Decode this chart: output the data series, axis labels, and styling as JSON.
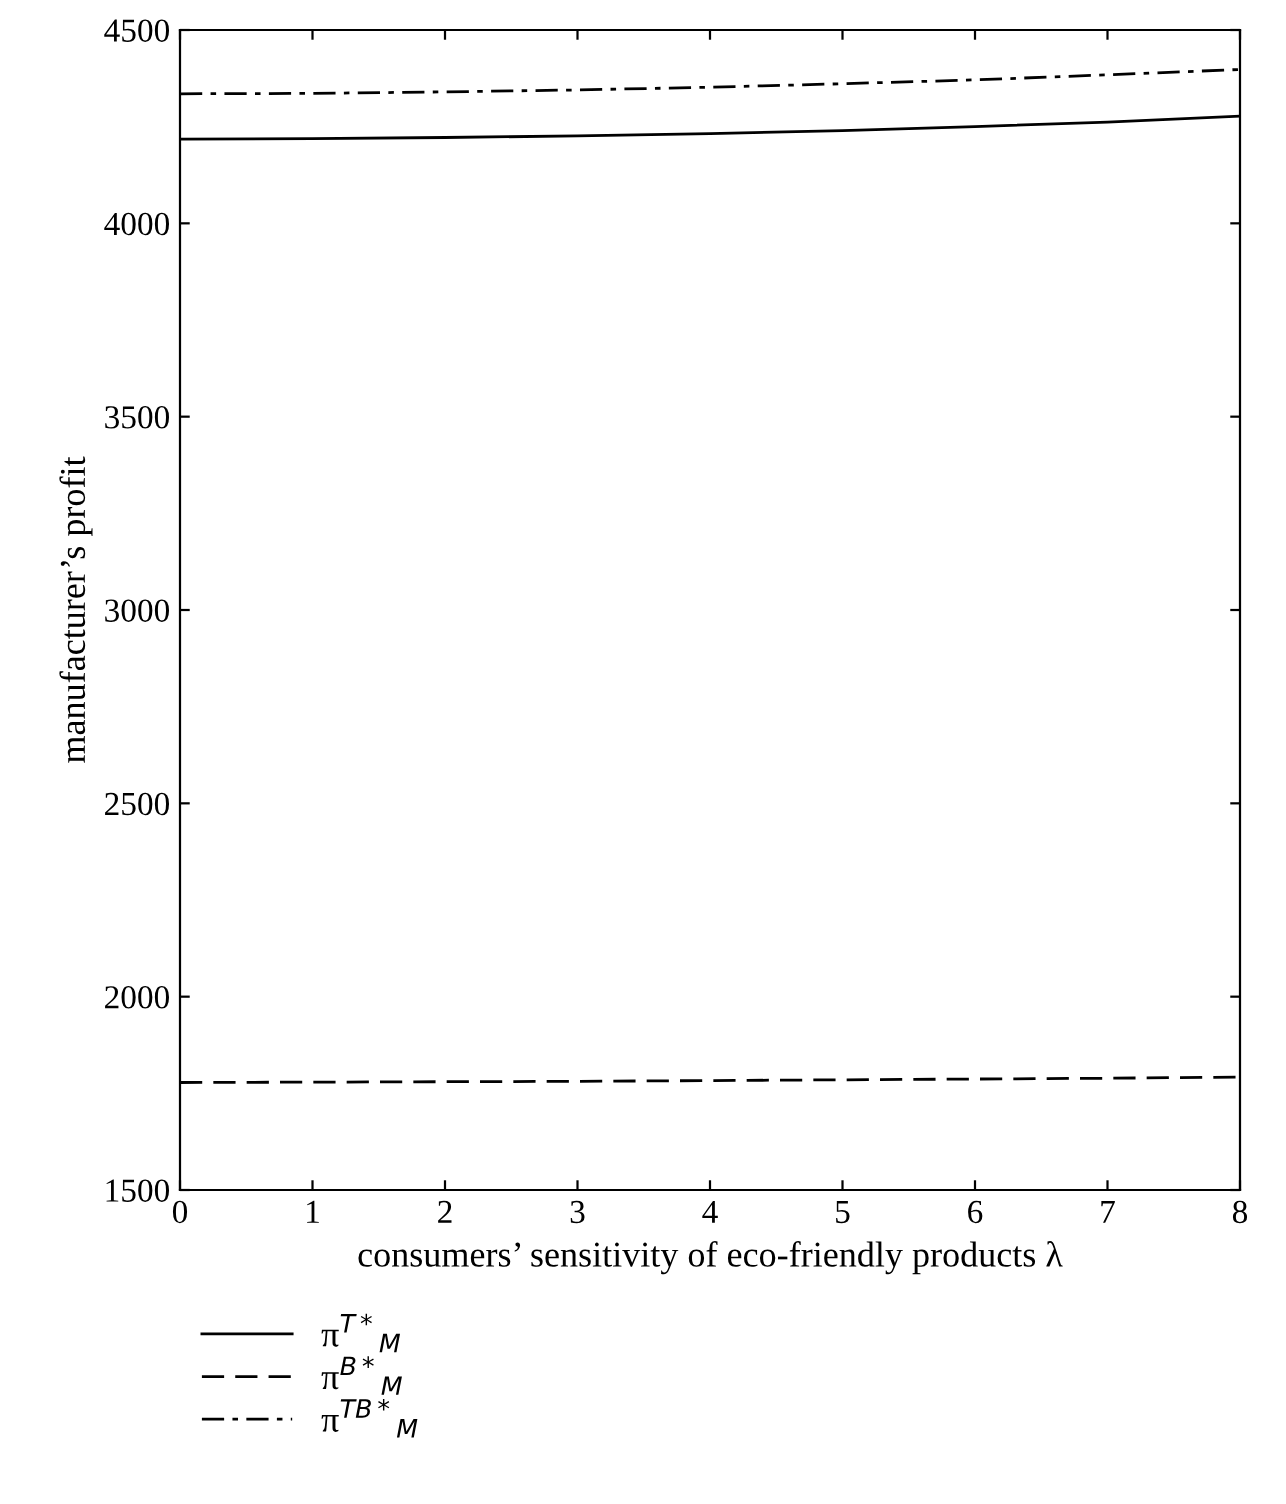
{
  "chart_data": {
    "type": "line",
    "xlabel": "consumers’ sensitivity of eco-friendly products λ",
    "ylabel": "manufacturer’s profit",
    "x": [
      0,
      1,
      2,
      3,
      4,
      5,
      6,
      7,
      8
    ],
    "series": [
      {
        "name": "π$^{T*}$$_{M}$",
        "color": "#000000",
        "line_style": "solid",
        "values": [
          4218,
          4219,
          4222,
          4226,
          4232,
          4240,
          4250,
          4262,
          4277
        ]
      },
      {
        "name": "π$^{B*}$$_{M}$",
        "color": "#000000",
        "line_style": "dashed",
        "values": [
          1778,
          1779,
          1780,
          1781,
          1783,
          1785,
          1787,
          1789,
          1792
        ]
      },
      {
        "name": "π$^{TB*}$$_{M}$",
        "color": "#000000",
        "line_style": "dashdot",
        "values": [
          4335,
          4336,
          4340,
          4345,
          4352,
          4361,
          4371,
          4384,
          4398
        ]
      }
    ],
    "xlim": [
      0,
      8
    ],
    "xticks": [
      0,
      1,
      2,
      3,
      4,
      5,
      6,
      7,
      8
    ],
    "ylim": [
      1500,
      4500
    ],
    "yticks": [
      1500,
      2000,
      2500,
      3000,
      3500,
      4000,
      4500
    ],
    "grid": false,
    "legend": "bottom",
    "marker": "none"
  }
}
